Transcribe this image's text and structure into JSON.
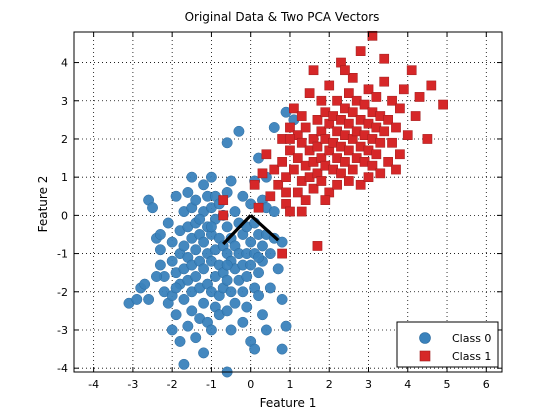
{
  "chart_data": {
    "type": "scatter",
    "title": "Original Data & Two PCA Vectors",
    "xlabel": "Feature 1",
    "ylabel": "Feature 2",
    "xlim": [
      -4.5,
      6.4
    ],
    "ylim": [
      -4.1,
      4.8
    ],
    "xticks": [
      -4,
      -3,
      -2,
      -1,
      0,
      1,
      2,
      3,
      4,
      5,
      6
    ],
    "yticks": [
      -4,
      -3,
      -2,
      -1,
      0,
      1,
      2,
      3,
      4
    ],
    "grid": true,
    "grid_style": "dotted",
    "legend_position": "bottom-right",
    "series": [
      {
        "name": "Class 0",
        "marker": "circle",
        "color": "#3a82bc",
        "points": [
          [
            -3.1,
            -2.3
          ],
          [
            -2.9,
            -2.2
          ],
          [
            -2.8,
            -1.9
          ],
          [
            -2.7,
            -1.8
          ],
          [
            -2.6,
            -2.2
          ],
          [
            -2.6,
            0.4
          ],
          [
            -2.5,
            0.2
          ],
          [
            -2.4,
            -0.6
          ],
          [
            -2.3,
            -0.9
          ],
          [
            -2.3,
            -1.3
          ],
          [
            -2.2,
            -1.6
          ],
          [
            -2.2,
            -2.0
          ],
          [
            -2.1,
            -0.2
          ],
          [
            -2.1,
            -2.3
          ],
          [
            -2.0,
            -2.1
          ],
          [
            -2.0,
            -1.2
          ],
          [
            -2.0,
            -0.7
          ],
          [
            -2.0,
            -3.0
          ],
          [
            -1.9,
            0.5
          ],
          [
            -1.9,
            -1.5
          ],
          [
            -1.9,
            -2.6
          ],
          [
            -1.8,
            -0.4
          ],
          [
            -1.8,
            -1.0
          ],
          [
            -1.8,
            -1.8
          ],
          [
            -1.8,
            -3.3
          ],
          [
            -1.7,
            0.1
          ],
          [
            -1.7,
            -0.8
          ],
          [
            -1.7,
            -1.4
          ],
          [
            -1.7,
            -2.2
          ],
          [
            -1.7,
            -3.9
          ],
          [
            -1.6,
            0.6
          ],
          [
            -1.6,
            -0.3
          ],
          [
            -1.6,
            -1.1
          ],
          [
            -1.6,
            -1.7
          ],
          [
            -1.6,
            -2.9
          ],
          [
            -1.5,
            1.0
          ],
          [
            -1.5,
            0.2
          ],
          [
            -1.5,
            -0.6
          ],
          [
            -1.5,
            -1.3
          ],
          [
            -1.5,
            -2.0
          ],
          [
            -1.5,
            -2.5
          ],
          [
            -1.4,
            0.4
          ],
          [
            -1.4,
            -0.2
          ],
          [
            -1.4,
            -0.9
          ],
          [
            -1.4,
            -1.6
          ],
          [
            -1.4,
            -3.2
          ],
          [
            -1.3,
            -0.5
          ],
          [
            -1.3,
            -1.2
          ],
          [
            -1.3,
            -1.9
          ],
          [
            -1.3,
            -2.7
          ],
          [
            -1.2,
            0.8
          ],
          [
            -1.2,
            0.1
          ],
          [
            -1.2,
            -0.7
          ],
          [
            -1.2,
            -1.4
          ],
          [
            -1.2,
            -2.3
          ],
          [
            -1.2,
            -3.6
          ],
          [
            -1.1,
            0.5
          ],
          [
            -1.1,
            -0.3
          ],
          [
            -1.1,
            -1.0
          ],
          [
            -1.1,
            -1.8
          ],
          [
            -1.1,
            -2.8
          ],
          [
            -1.0,
            1.0
          ],
          [
            -1.0,
            0.2
          ],
          [
            -1.0,
            -0.5
          ],
          [
            -1.0,
            -1.2
          ],
          [
            -1.0,
            -2.0
          ],
          [
            -1.0,
            -3.0
          ],
          [
            -0.9,
            0.5
          ],
          [
            -0.9,
            -0.1
          ],
          [
            -0.9,
            -0.9
          ],
          [
            -0.9,
            -1.6
          ],
          [
            -0.9,
            -2.4
          ],
          [
            -0.8,
            0.3
          ],
          [
            -0.8,
            -0.6
          ],
          [
            -0.8,
            -1.3
          ],
          [
            -0.8,
            -2.1
          ],
          [
            -0.8,
            -2.6
          ],
          [
            -0.7,
            0.0
          ],
          [
            -0.7,
            -0.8
          ],
          [
            -0.7,
            -1.5
          ],
          [
            -0.7,
            -1.9
          ],
          [
            -0.6,
            1.9
          ],
          [
            -0.6,
            0.6
          ],
          [
            -0.6,
            -0.3
          ],
          [
            -0.6,
            -1.0
          ],
          [
            -0.6,
            -1.7
          ],
          [
            -0.6,
            -2.5
          ],
          [
            -0.6,
            -4.1
          ],
          [
            -0.5,
            -0.6
          ],
          [
            -0.5,
            -1.2
          ],
          [
            -0.5,
            -2.0
          ],
          [
            -0.5,
            -3.0
          ],
          [
            -0.4,
            0.1
          ],
          [
            -0.4,
            -0.8
          ],
          [
            -0.4,
            -1.4
          ],
          [
            -0.4,
            -2.3
          ],
          [
            -0.3,
            2.2
          ],
          [
            -0.3,
            -0.2
          ],
          [
            -0.3,
            -1.0
          ],
          [
            -0.3,
            -1.7
          ],
          [
            -0.2,
            0.5
          ],
          [
            -0.2,
            -0.5
          ],
          [
            -0.2,
            -1.3
          ],
          [
            -0.2,
            -2.0
          ],
          [
            -0.1,
            -0.3
          ],
          [
            -0.1,
            -1.0
          ],
          [
            -0.1,
            -1.6
          ],
          [
            -0.1,
            -2.4
          ],
          [
            0.0,
            0.3
          ],
          [
            0.0,
            -0.7
          ],
          [
            0.0,
            -1.3
          ],
          [
            0.0,
            -3.3
          ],
          [
            0.1,
            0.9
          ],
          [
            0.1,
            -0.2
          ],
          [
            0.1,
            -1.0
          ],
          [
            0.1,
            -1.9
          ],
          [
            0.1,
            -3.5
          ],
          [
            0.2,
            1.5
          ],
          [
            0.2,
            -0.5
          ],
          [
            0.2,
            -1.5
          ],
          [
            0.2,
            -2.1
          ],
          [
            0.3,
            0.4
          ],
          [
            0.3,
            -0.8
          ],
          [
            0.3,
            -1.2
          ],
          [
            0.3,
            -2.6
          ],
          [
            0.4,
            0.2
          ],
          [
            0.4,
            -0.5
          ],
          [
            0.5,
            -1.0
          ],
          [
            0.5,
            -1.9
          ],
          [
            0.6,
            2.3
          ],
          [
            0.6,
            0.1
          ],
          [
            0.7,
            -1.4
          ],
          [
            0.8,
            -2.2
          ],
          [
            0.8,
            -3.5
          ],
          [
            0.9,
            -2.9
          ],
          [
            0.4,
            1.0
          ],
          [
            -1.9,
            -1.9
          ],
          [
            -2.4,
            -1.6
          ],
          [
            -0.5,
            0.9
          ],
          [
            -1.0,
            -0.3
          ],
          [
            0.9,
            2.7
          ],
          [
            1.1,
            2.5
          ],
          [
            0.8,
            -0.7
          ],
          [
            -2.3,
            -0.5
          ],
          [
            -1.3,
            -0.1
          ],
          [
            0.2,
            -1.1
          ],
          [
            -0.6,
            -1.3
          ],
          [
            0.6,
            -0.6
          ],
          [
            0.4,
            -3.0
          ],
          [
            -0.2,
            -2.8
          ]
        ]
      },
      {
        "name": "Class 1",
        "marker": "square",
        "color": "#d62728",
        "points": [
          [
            -0.7,
            0.0
          ],
          [
            -0.7,
            0.4
          ],
          [
            0.1,
            0.8
          ],
          [
            0.2,
            0.2
          ],
          [
            0.3,
            1.1
          ],
          [
            0.4,
            1.6
          ],
          [
            0.5,
            0.5
          ],
          [
            0.6,
            1.2
          ],
          [
            0.7,
            0.8
          ],
          [
            0.8,
            2.0
          ],
          [
            0.8,
            1.4
          ],
          [
            0.8,
            -1.0
          ],
          [
            0.9,
            0.3
          ],
          [
            0.9,
            1.0
          ],
          [
            1.0,
            1.7
          ],
          [
            1.0,
            2.3
          ],
          [
            1.0,
            0.1
          ],
          [
            1.1,
            1.2
          ],
          [
            1.1,
            2.8
          ],
          [
            1.2,
            0.6
          ],
          [
            1.2,
            1.5
          ],
          [
            1.2,
            2.1
          ],
          [
            1.3,
            0.9
          ],
          [
            1.3,
            1.9
          ],
          [
            1.3,
            2.6
          ],
          [
            1.4,
            0.4
          ],
          [
            1.4,
            1.3
          ],
          [
            1.4,
            2.3
          ],
          [
            1.5,
            1.0
          ],
          [
            1.5,
            1.7
          ],
          [
            1.5,
            3.2
          ],
          [
            1.6,
            0.7
          ],
          [
            1.6,
            1.4
          ],
          [
            1.6,
            2.0
          ],
          [
            1.6,
            3.8
          ],
          [
            1.7,
            -0.8
          ],
          [
            1.7,
            1.1
          ],
          [
            1.7,
            1.8
          ],
          [
            1.7,
            2.5
          ],
          [
            1.8,
            0.9
          ],
          [
            1.8,
            1.5
          ],
          [
            1.8,
            2.2
          ],
          [
            1.8,
            3.0
          ],
          [
            1.9,
            1.3
          ],
          [
            1.9,
            2.0
          ],
          [
            1.9,
            2.7
          ],
          [
            2.0,
            0.6
          ],
          [
            2.0,
            1.7
          ],
          [
            2.0,
            2.4
          ],
          [
            2.0,
            3.4
          ],
          [
            2.1,
            1.2
          ],
          [
            2.1,
            1.9
          ],
          [
            2.1,
            2.6
          ],
          [
            2.2,
            0.8
          ],
          [
            2.2,
            1.5
          ],
          [
            2.2,
            2.2
          ],
          [
            2.2,
            3.0
          ],
          [
            2.3,
            1.1
          ],
          [
            2.3,
            1.8
          ],
          [
            2.3,
            2.5
          ],
          [
            2.3,
            4.0
          ],
          [
            2.4,
            1.4
          ],
          [
            2.4,
            2.1
          ],
          [
            2.4,
            2.8
          ],
          [
            2.5,
            0.9
          ],
          [
            2.5,
            1.7
          ],
          [
            2.5,
            2.4
          ],
          [
            2.5,
            3.2
          ],
          [
            2.6,
            1.2
          ],
          [
            2.6,
            2.0
          ],
          [
            2.6,
            2.7
          ],
          [
            2.6,
            3.6
          ],
          [
            2.7,
            1.5
          ],
          [
            2.7,
            2.2
          ],
          [
            2.7,
            3.0
          ],
          [
            2.8,
            0.8
          ],
          [
            2.8,
            1.8
          ],
          [
            2.8,
            2.5
          ],
          [
            2.8,
            4.3
          ],
          [
            2.9,
            1.4
          ],
          [
            2.9,
            2.1
          ],
          [
            2.9,
            2.9
          ],
          [
            3.0,
            1.0
          ],
          [
            3.0,
            1.7
          ],
          [
            3.0,
            2.4
          ],
          [
            3.0,
            3.3
          ],
          [
            3.1,
            1.3
          ],
          [
            3.1,
            2.0
          ],
          [
            3.1,
            2.7
          ],
          [
            3.1,
            4.7
          ],
          [
            3.2,
            1.6
          ],
          [
            3.2,
            2.3
          ],
          [
            3.2,
            3.1
          ],
          [
            3.3,
            1.1
          ],
          [
            3.3,
            1.9
          ],
          [
            3.3,
            2.6
          ],
          [
            3.4,
            2.2
          ],
          [
            3.4,
            3.5
          ],
          [
            3.5,
            1.4
          ],
          [
            3.5,
            2.5
          ],
          [
            3.6,
            1.9
          ],
          [
            3.6,
            3.0
          ],
          [
            3.7,
            1.2
          ],
          [
            3.7,
            2.3
          ],
          [
            3.8,
            2.8
          ],
          [
            3.8,
            1.6
          ],
          [
            3.9,
            3.3
          ],
          [
            4.0,
            2.1
          ],
          [
            4.1,
            3.8
          ],
          [
            4.2,
            2.6
          ],
          [
            4.3,
            3.1
          ],
          [
            4.5,
            2.0
          ],
          [
            4.6,
            3.4
          ],
          [
            4.9,
            2.9
          ],
          [
            0.9,
            0.6
          ],
          [
            1.3,
            0.1
          ],
          [
            1.9,
            0.4
          ],
          [
            2.4,
            3.8
          ],
          [
            3.4,
            4.1
          ],
          [
            1.0,
            2.0
          ]
        ]
      }
    ],
    "annotation_lines": [
      [
        [
          0.0,
          0.0
        ],
        [
          -0.7,
          -0.75
        ]
      ],
      [
        [
          0.0,
          0.0
        ],
        [
          0.7,
          -0.65
        ]
      ]
    ]
  }
}
